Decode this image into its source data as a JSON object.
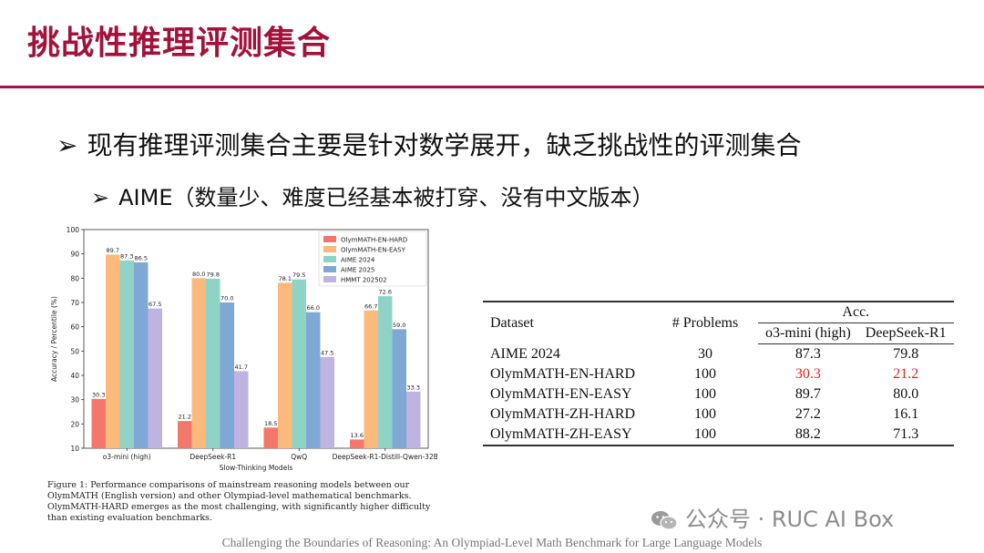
{
  "slide": {
    "title": "挑战性推理评测集合",
    "bullet1_marker": "➢",
    "bullet1": "现有推理评测集合主要是针对数学展开，缺乏挑战性的评测集合",
    "bullet2_marker": "➢",
    "bullet2": "AIME（数量少、难度已经基本被打穿、没有中文版本）",
    "footer": "Challenging the Boundaries of Reasoning: An Olympiad-Level Math Benchmark for Large Language Models",
    "watermark": "公众号 · RUC AI Box"
  },
  "caption": "Figure 1: Performance comparisons of mainstream reasoning models between our OlymMATH (English version) and other Olympiad-level mathematical benchmarks. OlymMATH-HARD emerges as the most challenging, with significantly higher difficulty than existing evaluation benchmarks.",
  "chart_data": {
    "type": "bar",
    "xlabel": "Slow-Thinking Models",
    "ylabel": "Accuracy / Percentile (%)",
    "ylim": [
      10,
      100
    ],
    "yticks": [
      10,
      20,
      30,
      40,
      50,
      60,
      70,
      80,
      90,
      100
    ],
    "categories": [
      "o3-mini (high)",
      "DeepSeek-R1",
      "QwQ",
      "DeepSeek-R1-Distill-Qwen-32B"
    ],
    "series": [
      {
        "name": "OlymMATH-EN-HARD",
        "color": "#f4776b",
        "values": [
          30.3,
          21.2,
          18.5,
          13.6
        ]
      },
      {
        "name": "OlymMATH-EN-EASY",
        "color": "#fcb97c",
        "values": [
          89.7,
          80.0,
          78.1,
          66.7
        ]
      },
      {
        "name": "AIME 2024",
        "color": "#8fd3c7",
        "values": [
          87.3,
          79.8,
          79.5,
          72.6
        ]
      },
      {
        "name": "AIME 2025",
        "color": "#7fa9d4",
        "values": [
          86.5,
          70.0,
          66.0,
          59.0
        ]
      },
      {
        "name": "HMMT 202502",
        "color": "#bfb3e0",
        "values": [
          67.5,
          41.7,
          47.5,
          33.3
        ]
      }
    ],
    "legend_position": "top-right"
  },
  "table": {
    "col_dataset": "Dataset",
    "col_problems": "# Problems",
    "col_acc": "Acc.",
    "col_model1": "o3-mini (high)",
    "col_model2": "DeepSeek-R1",
    "highlight_color": "#e32222",
    "rows": [
      {
        "dataset": "AIME 2024",
        "problems": "30",
        "m1": "87.3",
        "m2": "79.8"
      },
      {
        "dataset": "OlymMATH-EN-HARD",
        "problems": "100",
        "m1": "30.3",
        "m2": "21.2"
      },
      {
        "dataset": "OlymMATH-EN-EASY",
        "problems": "100",
        "m1": "89.7",
        "m2": "80.0"
      },
      {
        "dataset": "OlymMATH-ZH-HARD",
        "problems": "100",
        "m1": "27.2",
        "m2": "16.1"
      },
      {
        "dataset": "OlymMATH-ZH-EASY",
        "problems": "100",
        "m1": "88.2",
        "m2": "71.3"
      }
    ]
  }
}
